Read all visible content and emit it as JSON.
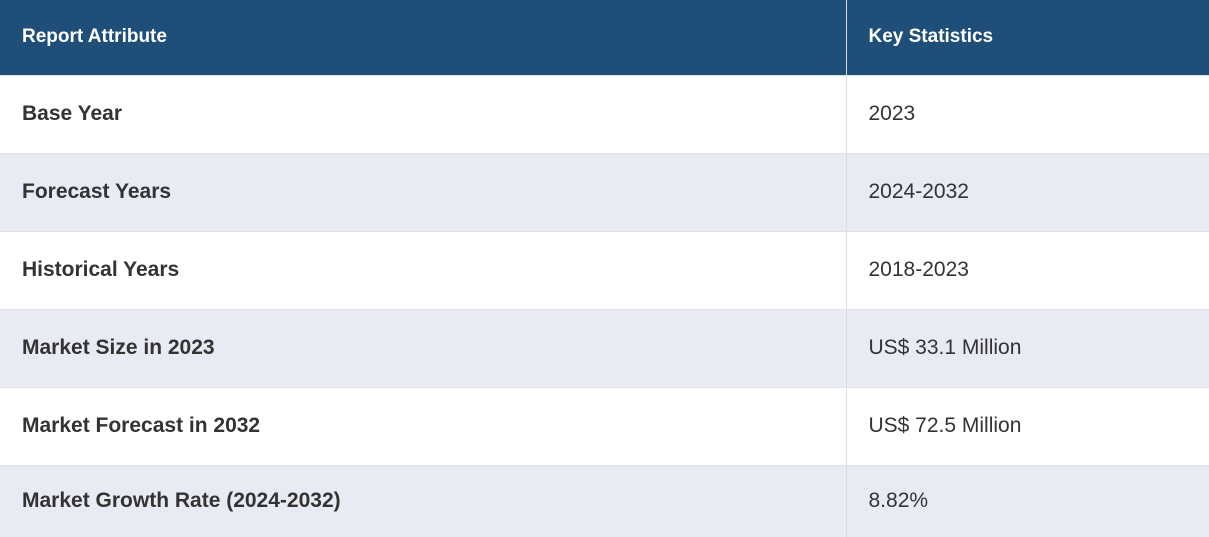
{
  "table": {
    "headers": {
      "attribute": "Report Attribute",
      "statistics": "Key Statistics"
    },
    "rows": [
      {
        "attribute": "Base Year",
        "value": "2023"
      },
      {
        "attribute": "Forecast Years",
        "value": "2024-2032"
      },
      {
        "attribute": "Historical Years",
        "value": "2018-2023"
      },
      {
        "attribute": "Market Size in 2023",
        "value": "US$ 33.1 Million"
      },
      {
        "attribute": "Market Forecast in 2032",
        "value": "US$ 72.5 Million"
      },
      {
        "attribute": "Market Growth Rate (2024-2032)",
        "value": "8.82%"
      }
    ]
  },
  "colors": {
    "header_background": "#1f4e78",
    "header_text": "#ffffff",
    "stripe_background": "#e8eaf4",
    "body_text": "#333333"
  }
}
